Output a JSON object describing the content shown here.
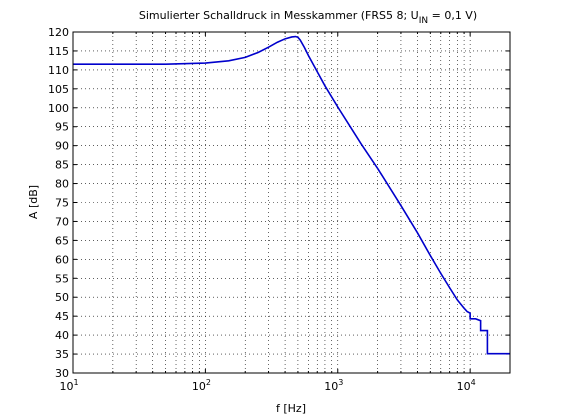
{
  "chart_data": {
    "type": "line",
    "title_main": "Simulierter Schalldruck in Messkammer (FRS5 8; U",
    "title_sub": "IN",
    "title_tail": " = 0,1 V)",
    "xlabel": "f [Hz]",
    "ylabel": "A [dB]",
    "x_scale": "log",
    "xlim": [
      10,
      20000
    ],
    "ylim": [
      30,
      120
    ],
    "grid": "dotted",
    "x_tick_values": [
      10,
      100,
      1000,
      10000
    ],
    "x_tick_bases": [
      "10",
      "10",
      "10",
      "10"
    ],
    "x_tick_exponents": [
      "1",
      "2",
      "3",
      "4"
    ],
    "y_ticks": [
      "30",
      "35",
      "40",
      "45",
      "50",
      "55",
      "60",
      "65",
      "70",
      "75",
      "80",
      "85",
      "90",
      "95",
      "100",
      "105",
      "110",
      "115",
      "120"
    ],
    "series_color": "#0000cc",
    "series": [
      {
        "x": [
          10,
          20,
          50,
          100,
          150,
          200,
          250,
          300,
          350,
          400,
          450,
          480,
          500,
          520,
          560,
          600,
          700,
          800,
          1000,
          1500,
          2000,
          3000,
          4000,
          5000,
          6000,
          7000,
          8000,
          9000,
          9500,
          10000,
          10001,
          10500,
          10501,
          11000,
          11001,
          12000,
          12001,
          13500,
          13501,
          20000
        ],
        "y": [
          111.5,
          111.5,
          111.5,
          111.8,
          112.4,
          113.3,
          114.6,
          116.0,
          117.3,
          118.2,
          118.7,
          118.8,
          118.6,
          117.9,
          115.9,
          113.8,
          109.5,
          105.8,
          100.2,
          90.5,
          84.0,
          74.2,
          67.0,
          61.0,
          56.3,
          52.5,
          49.3,
          47.1,
          46.2,
          45.8,
          44.3,
          44.3,
          44.3,
          44.3,
          44.3,
          43.8,
          41.2,
          41.2,
          35.1,
          35.1
        ]
      }
    ]
  }
}
